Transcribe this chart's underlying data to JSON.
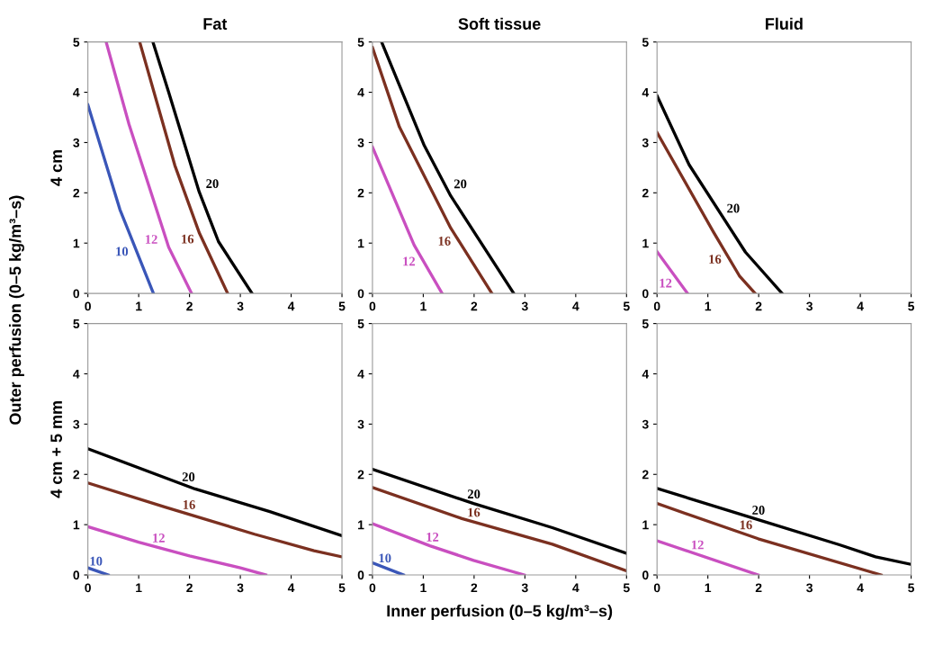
{
  "chart_data": [
    {
      "type": "line",
      "title": "Fat",
      "ylabel": "4 cm",
      "annotations": [
        "Outer perfusion (0–5 kg/m³–s)"
      ],
      "xlim": [
        0,
        5
      ],
      "ylim": [
        0,
        5
      ],
      "xticks": [
        0,
        1,
        2,
        3,
        4,
        5
      ],
      "yticks": [
        0,
        1,
        2,
        3,
        4,
        5
      ],
      "grid": false,
      "legend": false,
      "series": [
        {
          "name": "10",
          "color": "#3a56b8",
          "x": [
            0,
            0.63,
            1.29
          ],
          "values": [
            3.75,
            1.67,
            0
          ]
        },
        {
          "name": "12",
          "color": "#c94fc0",
          "x": [
            0.36,
            0.81,
            1.59,
            2.04
          ],
          "values": [
            5,
            3.36,
            0.92,
            0
          ]
        },
        {
          "name": "16",
          "color": "#7b3020",
          "x": [
            1.02,
            1.71,
            2.19,
            2.75
          ],
          "values": [
            5,
            2.55,
            1.21,
            0
          ]
        },
        {
          "name": "20",
          "color": "#000000",
          "x": [
            1.28,
            1.59,
            2.19,
            2.57,
            3.23
          ],
          "values": [
            5,
            4.0,
            2.02,
            1.03,
            0
          ]
        }
      ]
    },
    {
      "type": "line",
      "title": "Soft tissue",
      "xlim": [
        0,
        5
      ],
      "ylim": [
        0,
        5
      ],
      "xticks": [
        0,
        1,
        2,
        3,
        4,
        5
      ],
      "yticks": [
        0,
        1,
        2,
        3,
        4,
        5
      ],
      "grid": false,
      "legend": false,
      "series": [
        {
          "name": "12",
          "color": "#c94fc0",
          "x": [
            0,
            0.82,
            1.37
          ],
          "values": [
            2.91,
            0.96,
            0
          ]
        },
        {
          "name": "16",
          "color": "#7b3020",
          "x": [
            0,
            0.53,
            1.54,
            2.35
          ],
          "values": [
            4.89,
            3.31,
            1.3,
            0
          ]
        },
        {
          "name": "20",
          "color": "#000000",
          "x": [
            0.18,
            1.02,
            1.54,
            2.78
          ],
          "values": [
            5,
            2.94,
            1.94,
            0
          ]
        }
      ]
    },
    {
      "type": "line",
      "title": "Fluid",
      "xlim": [
        0,
        5
      ],
      "ylim": [
        0,
        5
      ],
      "xticks": [
        0,
        1,
        2,
        3,
        4,
        5
      ],
      "yticks": [
        0,
        1,
        2,
        3,
        4,
        5
      ],
      "grid": false,
      "legend": false,
      "series": [
        {
          "name": "12",
          "color": "#c94fc0",
          "x": [
            0,
            0.6
          ],
          "values": [
            0.83,
            0
          ]
        },
        {
          "name": "16",
          "color": "#7b3020",
          "x": [
            0,
            1.11,
            1.62,
            1.93
          ],
          "values": [
            3.2,
            1.22,
            0.35,
            0
          ]
        },
        {
          "name": "20",
          "color": "#000000",
          "x": [
            0,
            0.63,
            1.74,
            2.46
          ],
          "values": [
            3.93,
            2.56,
            0.82,
            0
          ]
        }
      ]
    },
    {
      "type": "line",
      "ylabel": "4 cm + 5 mm",
      "xlim": [
        0,
        5
      ],
      "ylim": [
        0,
        5
      ],
      "xticks": [
        0,
        1,
        2,
        3,
        4,
        5
      ],
      "yticks": [
        0,
        1,
        2,
        3,
        4,
        5
      ],
      "grid": false,
      "legend": false,
      "series": [
        {
          "name": "10",
          "color": "#3a56b8",
          "x": [
            0,
            0.4
          ],
          "values": [
            0.14,
            0
          ]
        },
        {
          "name": "12",
          "color": "#c94fc0",
          "x": [
            0,
            1,
            2,
            3,
            3.5
          ],
          "values": [
            0.96,
            0.65,
            0.38,
            0.14,
            0
          ]
        },
        {
          "name": "16",
          "color": "#7b3020",
          "x": [
            0,
            1.52,
            3.28,
            4.45,
            5
          ],
          "values": [
            1.83,
            1.35,
            0.81,
            0.48,
            0.36
          ]
        },
        {
          "name": "20",
          "color": "#000000",
          "x": [
            0,
            2.11,
            3.58,
            5
          ],
          "values": [
            2.51,
            1.71,
            1.26,
            0.78
          ]
        }
      ]
    },
    {
      "type": "line",
      "xlabel": "Inner perfusion (0–5 kg/m³–s)",
      "xlim": [
        0,
        5
      ],
      "ylim": [
        0,
        5
      ],
      "xticks": [
        0,
        1,
        2,
        3,
        4,
        5
      ],
      "yticks": [
        0,
        1,
        2,
        3,
        4,
        5
      ],
      "grid": false,
      "legend": false,
      "series": [
        {
          "name": "10",
          "color": "#3a56b8",
          "x": [
            0,
            0.61
          ],
          "values": [
            0.24,
            0
          ]
        },
        {
          "name": "12",
          "color": "#c94fc0",
          "x": [
            0,
            1.13,
            1.99,
            2.99
          ],
          "values": [
            1.02,
            0.58,
            0.29,
            0
          ]
        },
        {
          "name": "16",
          "color": "#7b3020",
          "x": [
            0,
            1.76,
            3.54,
            5
          ],
          "values": [
            1.74,
            1.12,
            0.61,
            0.08
          ]
        },
        {
          "name": "20",
          "color": "#000000",
          "x": [
            0,
            1.99,
            3.54,
            5
          ],
          "values": [
            2.1,
            1.42,
            0.94,
            0.43
          ]
        }
      ]
    },
    {
      "type": "line",
      "xlim": [
        0,
        5
      ],
      "ylim": [
        0,
        5
      ],
      "xticks": [
        0,
        1,
        2,
        3,
        4,
        5
      ],
      "yticks": [
        0,
        1,
        2,
        3,
        4,
        5
      ],
      "grid": false,
      "legend": false,
      "series": [
        {
          "name": "12",
          "color": "#c94fc0",
          "x": [
            0,
            1.99
          ],
          "values": [
            0.68,
            0
          ]
        },
        {
          "name": "16",
          "color": "#7b3020",
          "x": [
            0,
            1.99,
            4.41
          ],
          "values": [
            1.42,
            0.72,
            0
          ]
        },
        {
          "name": "20",
          "color": "#000000",
          "x": [
            0,
            1.99,
            3.59,
            4.3,
            5
          ],
          "values": [
            1.72,
            1.1,
            0.6,
            0.36,
            0.21
          ]
        }
      ]
    }
  ]
}
